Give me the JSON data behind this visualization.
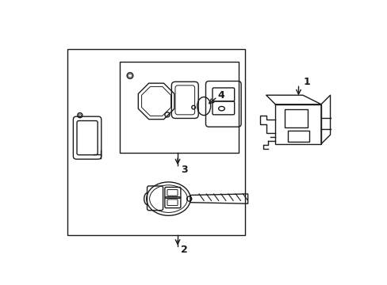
{
  "bg_color": "#ffffff",
  "line_color": "#1a1a1a",
  "fig_width": 4.89,
  "fig_height": 3.6,
  "label_1": "1",
  "label_2": "2",
  "label_3": "3",
  "label_4": "4"
}
